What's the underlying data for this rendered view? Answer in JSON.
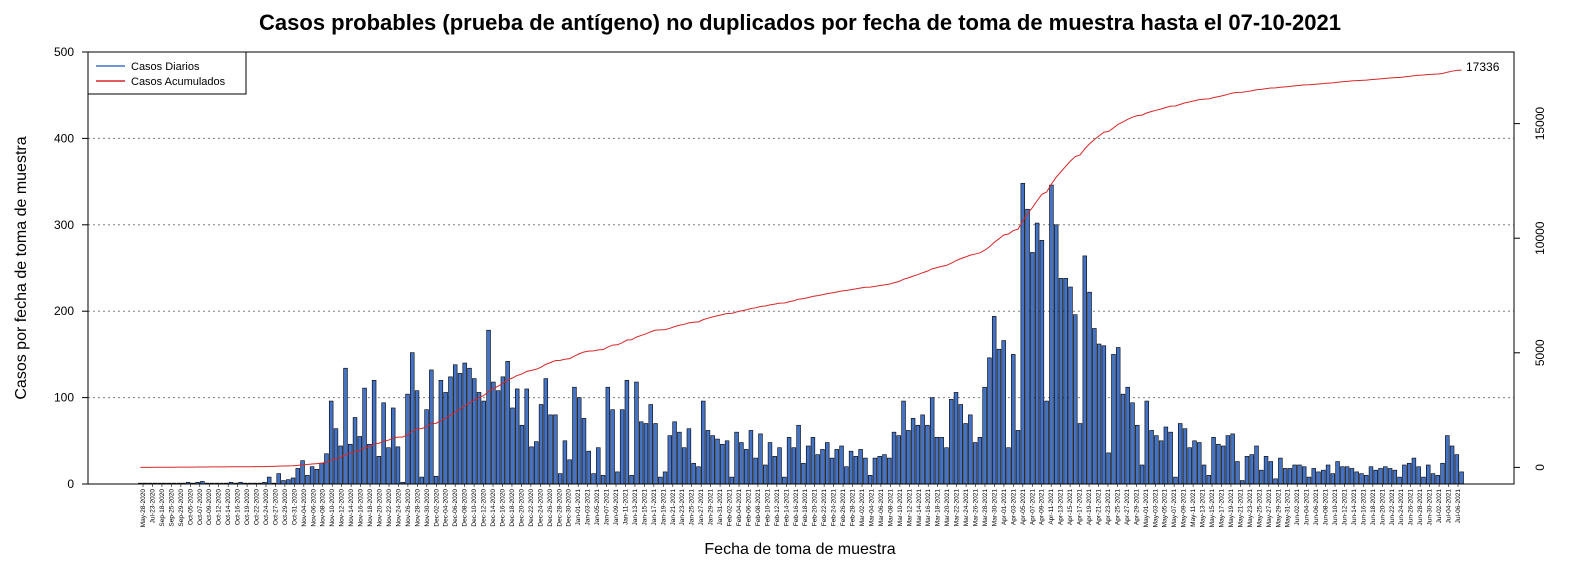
{
  "chart_data": {
    "type": "bar",
    "title": "Casos probables (prueba de antígeno) no duplicados por fecha de toma de muestra hasta el 07-10-2021",
    "xlabel": "Fecha de toma de muestra",
    "ylabel": "Casos por fecha de toma de muestra",
    "ylim": [
      0,
      500
    ],
    "yticks": [
      0,
      100,
      200,
      300,
      400,
      500
    ],
    "y2lim": [
      -725,
      18125
    ],
    "y2ticks": [
      0,
      5000,
      10000,
      15000
    ],
    "grid": "horizontal-dotted",
    "legend_position": "top-left",
    "annotation": "17336",
    "colors": {
      "bars": "#4472c4",
      "bar_border": "#000000",
      "cumulative": "#d62728",
      "axis": "#000000"
    },
    "x_tick_labels": [
      "May-28-2020",
      "Jul-23-2020",
      "Sep-18-2020",
      "Sep-25-2020",
      "Sep-29-2020",
      "Oct-05-2020",
      "Oct-07-2020",
      "Oct-09-2020",
      "Oct-12-2020",
      "Oct-14-2020",
      "Oct-16-2020",
      "Oct-19-2020",
      "Oct-22-2020",
      "Oct-24-2020",
      "Oct-27-2020",
      "Oct-29-2020",
      "Oct-31-2020",
      "Nov-04-2020",
      "Nov-06-2020",
      "Nov-08-2020",
      "Nov-10-2020",
      "Nov-12-2020",
      "Nov-14-2020",
      "Nov-16-2020",
      "Nov-18-2020",
      "Nov-20-2020",
      "Nov-22-2020",
      "Nov-24-2020",
      "Nov-26-2020",
      "Nov-28-2020",
      "Nov-30-2020",
      "Dec-02-2020",
      "Dec-04-2020",
      "Dec-06-2020",
      "Dec-08-2020",
      "Dec-10-2020",
      "Dec-12-2020",
      "Dec-14-2020",
      "Dec-16-2020",
      "Dec-18-2020",
      "Dec-20-2020",
      "Dec-22-2020",
      "Dec-24-2020",
      "Dec-26-2020",
      "Dec-28-2020",
      "Dec-30-2020",
      "Jan-01-2021",
      "Jan-03-2021",
      "Jan-05-2021",
      "Jan-07-2021",
      "Jan-09-2021",
      "Jan-11-2021",
      "Jan-13-2021",
      "Jan-15-2021",
      "Jan-17-2021",
      "Jan-19-2021",
      "Jan-21-2021",
      "Jan-23-2021",
      "Jan-25-2021",
      "Jan-27-2021",
      "Jan-29-2021",
      "Jan-31-2021",
      "Feb-02-2021",
      "Feb-04-2021",
      "Feb-06-2021",
      "Feb-08-2021",
      "Feb-10-2021",
      "Feb-12-2021",
      "Feb-14-2021",
      "Feb-16-2021",
      "Feb-18-2021",
      "Feb-20-2021",
      "Feb-22-2021",
      "Feb-24-2021",
      "Feb-26-2021",
      "Feb-28-2021",
      "Mar-02-2021",
      "Mar-04-2021",
      "Mar-06-2021",
      "Mar-08-2021",
      "Mar-10-2021",
      "Mar-12-2021",
      "Mar-14-2021",
      "Mar-16-2021",
      "Mar-18-2021",
      "Mar-20-2021",
      "Mar-22-2021",
      "Mar-24-2021",
      "Mar-26-2021",
      "Mar-28-2021",
      "Mar-30-2021",
      "Apr-01-2021",
      "Apr-03-2021",
      "Apr-05-2021",
      "Apr-07-2021",
      "Apr-09-2021",
      "Apr-11-2021",
      "Apr-13-2021",
      "Apr-15-2021",
      "Apr-17-2021",
      "Apr-19-2021",
      "Apr-21-2021",
      "Apr-23-2021",
      "Apr-25-2021",
      "Apr-27-2021",
      "Apr-29-2021",
      "May-01-2021",
      "May-03-2021",
      "May-05-2021",
      "May-07-2021",
      "May-09-2021",
      "May-11-2021",
      "May-13-2021",
      "May-15-2021",
      "May-17-2021",
      "May-19-2021",
      "May-21-2021",
      "May-23-2021",
      "May-25-2021",
      "May-27-2021",
      "May-29-2021",
      "May-31-2021",
      "Jun-02-2021",
      "Jun-04-2021",
      "Jun-06-2021",
      "Jun-08-2021",
      "Jun-10-2021",
      "Jun-12-2021",
      "Jun-14-2021",
      "Jun-16-2021",
      "Jun-18-2021",
      "Jun-20-2021",
      "Jun-22-2021",
      "Jun-24-2021",
      "Jun-26-2021",
      "Jun-28-2021",
      "Jun-30-2021",
      "Jul-02-2021",
      "Jul-04-2021",
      "Jul-06-2021"
    ],
    "values": [
      1,
      1,
      1,
      1,
      1,
      1,
      1,
      1,
      1,
      1,
      2,
      1,
      2,
      3,
      1,
      1,
      1,
      1,
      1,
      2,
      1,
      2,
      1,
      1,
      1,
      1,
      2,
      8,
      1,
      12,
      4,
      5,
      7,
      18,
      27,
      10,
      20,
      17,
      24,
      35,
      96,
      64,
      44,
      134,
      46,
      77,
      55,
      111,
      46,
      120,
      32,
      94,
      42,
      88,
      43,
      2,
      104,
      152,
      108,
      8,
      86,
      132,
      9,
      120,
      106,
      124,
      138,
      128,
      140,
      134,
      122,
      106,
      96,
      178,
      118,
      108,
      124,
      142,
      88,
      110,
      68,
      110,
      43,
      49,
      92,
      122,
      80,
      80,
      12,
      50,
      28,
      112,
      100,
      76,
      38,
      12,
      42,
      10,
      112,
      86,
      14,
      86,
      120,
      10,
      118,
      72,
      70,
      92,
      70,
      8,
      14,
      56,
      72,
      60,
      42,
      64,
      24,
      20,
      96,
      62,
      56,
      52,
      46,
      50,
      8,
      60,
      48,
      40,
      62,
      30,
      58,
      22,
      48,
      32,
      42,
      8,
      54,
      42,
      68,
      24,
      44,
      54,
      34,
      40,
      48,
      30,
      40,
      44,
      20,
      38,
      32,
      40,
      30,
      10,
      30,
      32,
      34,
      30,
      60,
      56,
      96,
      62,
      76,
      68,
      80,
      68,
      100,
      54,
      54,
      42,
      98,
      106,
      92,
      70,
      80,
      48,
      54,
      112,
      146,
      194,
      156,
      166,
      42,
      150,
      62,
      348,
      318,
      268,
      302,
      282,
      96,
      346,
      300,
      238,
      238,
      228,
      196,
      70,
      264,
      222,
      180,
      162,
      160,
      36,
      150,
      158,
      104,
      112,
      94,
      68,
      22,
      96,
      62,
      56,
      50,
      66,
      60,
      8,
      70,
      64,
      42,
      50,
      48,
      22,
      10,
      54,
      46,
      44,
      56,
      58,
      26,
      4,
      32,
      34,
      44,
      16,
      32,
      26,
      6,
      30,
      18,
      18,
      22,
      22,
      20,
      8,
      18,
      14,
      16,
      22,
      12,
      26,
      20,
      20,
      18,
      14,
      12,
      10,
      20,
      16,
      18,
      20,
      18,
      16,
      8,
      22,
      24,
      30,
      20,
      8,
      22,
      12,
      10,
      24,
      56,
      44,
      34,
      14
    ],
    "cumulative_final": 17336
  },
  "legend": {
    "items": [
      {
        "label": "Casos Diarios",
        "color": "#4472c4"
      },
      {
        "label": "Casos Acumulados",
        "color": "#d62728"
      }
    ]
  }
}
